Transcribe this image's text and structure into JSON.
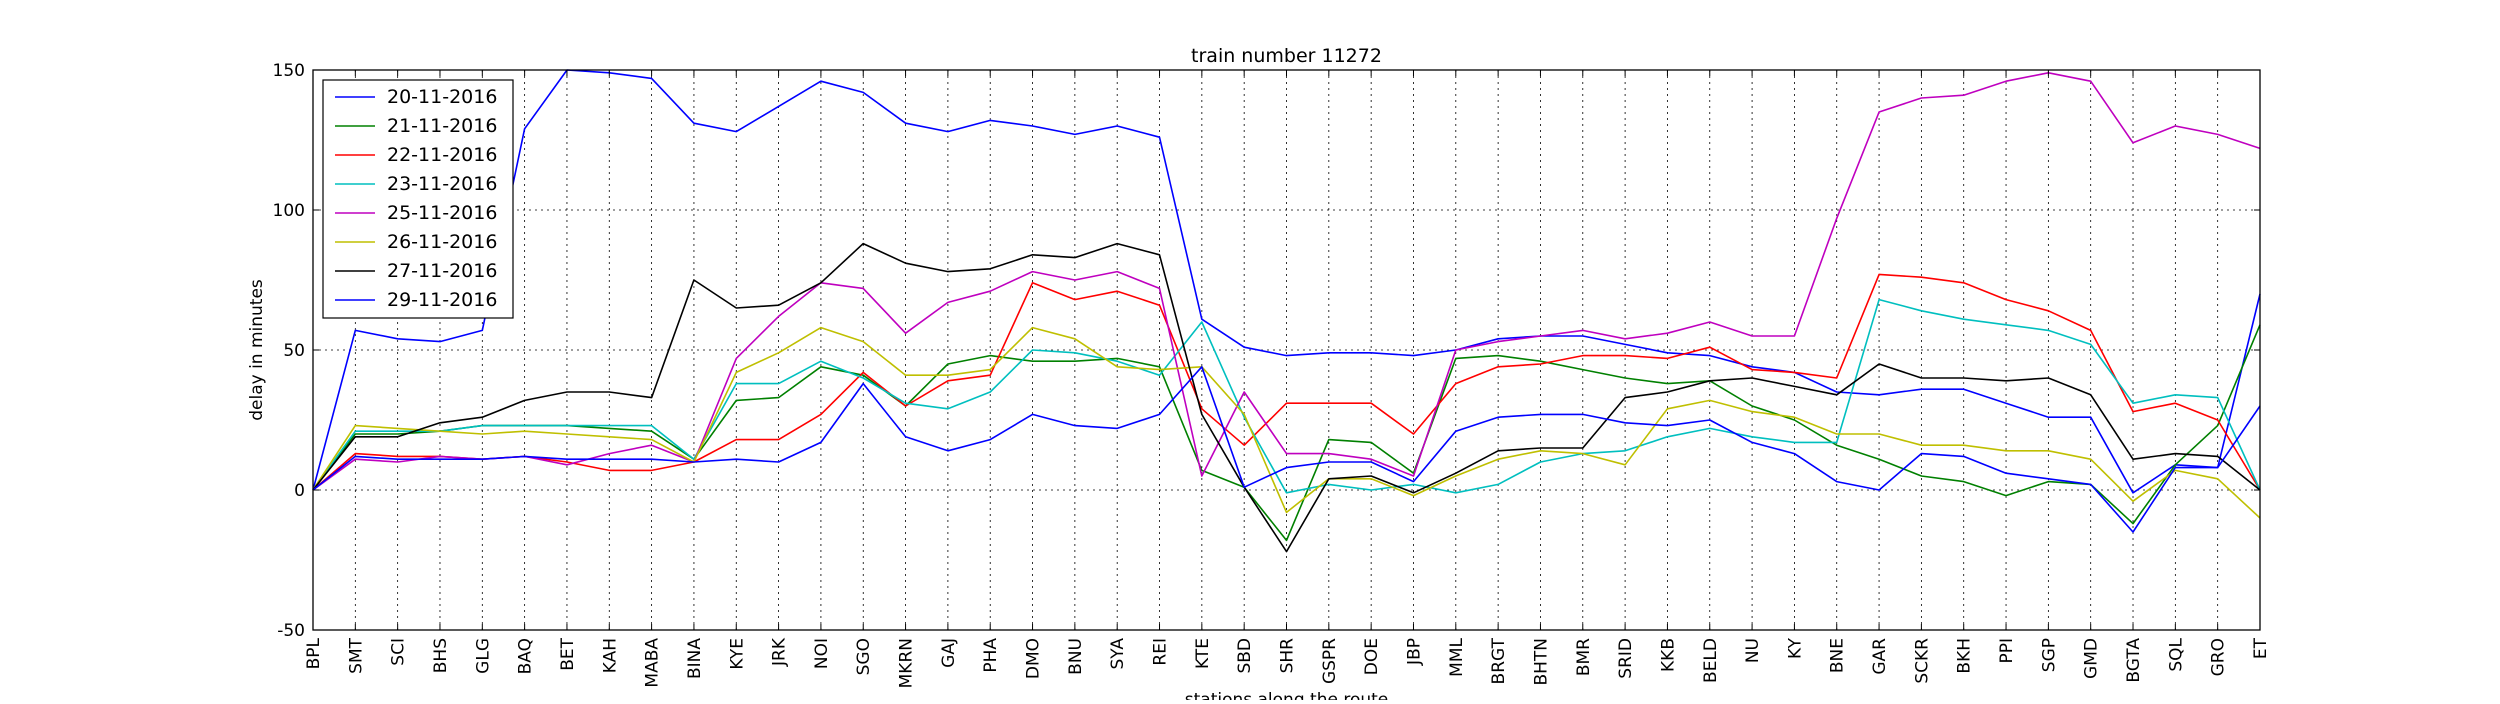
{
  "chart_data": {
    "type": "line",
    "title": "train number 11272",
    "xlabel": "stations along the route",
    "ylabel": "delay in minutes",
    "ylim": [
      -50,
      150
    ],
    "yticks": [
      -50,
      0,
      50,
      100,
      150
    ],
    "grid": true,
    "legend_position": "top-left",
    "categories": [
      "BPL",
      "SMT",
      "SCI",
      "BHS",
      "GLG",
      "BAQ",
      "BET",
      "KAH",
      "MABA",
      "BINA",
      "KYE",
      "JRK",
      "NOI",
      "SGO",
      "MKRN",
      "GAJ",
      "PHA",
      "DMO",
      "BNU",
      "SYA",
      "REI",
      "KTE",
      "SBD",
      "SHR",
      "GSPR",
      "DOE",
      "JBP",
      "MML",
      "BRGT",
      "BHTN",
      "BMR",
      "SRID",
      "KKB",
      "BELD",
      "NU",
      "KY",
      "BNE",
      "GAR",
      "SCKR",
      "BKH",
      "PPI",
      "SGP",
      "GMD",
      "BGTA",
      "SQL",
      "GRO",
      "ET"
    ],
    "series": [
      {
        "name": "20-11-2016",
        "color": "#0000ff",
        "values": [
          0,
          57,
          54,
          53,
          57,
          129,
          150,
          149,
          147,
          131,
          128,
          137,
          146,
          142,
          131,
          128,
          132,
          130,
          127,
          130,
          126,
          61,
          51,
          48,
          49,
          49,
          48,
          50,
          54,
          55,
          55,
          52,
          49,
          48,
          44,
          42,
          35,
          34,
          36,
          36,
          31,
          26,
          26,
          -1,
          9,
          8,
          70
        ]
      },
      {
        "name": "21-11-2016",
        "color": "#008000",
        "values": [
          0,
          20,
          20,
          21,
          23,
          23,
          23,
          22,
          21,
          11,
          32,
          33,
          44,
          41,
          30,
          45,
          48,
          46,
          46,
          47,
          44,
          7,
          1,
          -18,
          18,
          17,
          6,
          47,
          48,
          46,
          43,
          40,
          38,
          39,
          30,
          25,
          16,
          11,
          5,
          3,
          -2,
          3,
          2,
          -12,
          9,
          23,
          59
        ]
      },
      {
        "name": "22-11-2016",
        "color": "#ff0000",
        "values": [
          0,
          13,
          12,
          12,
          11,
          12,
          10,
          7,
          7,
          10,
          18,
          18,
          27,
          42,
          30,
          39,
          41,
          74,
          68,
          71,
          66,
          29,
          16,
          31,
          31,
          31,
          20,
          38,
          44,
          45,
          48,
          48,
          47,
          51,
          43,
          42,
          40,
          77,
          76,
          74,
          68,
          64,
          57,
          28,
          31,
          25,
          0
        ]
      },
      {
        "name": "23-11-2016",
        "color": "#00bfbf",
        "values": [
          0,
          21,
          21,
          21,
          23,
          23,
          23,
          23,
          23,
          11,
          38,
          38,
          46,
          40,
          31,
          29,
          35,
          50,
          49,
          46,
          41,
          60,
          26,
          -1,
          2,
          0,
          2,
          -1,
          2,
          10,
          13,
          14,
          19,
          22,
          19,
          17,
          17,
          68,
          64,
          61,
          59,
          57,
          52,
          31,
          34,
          33,
          0
        ]
      },
      {
        "name": "25-11-2016",
        "color": "#bf00bf",
        "values": [
          0,
          11,
          10,
          12,
          11,
          12,
          9,
          13,
          16,
          10,
          47,
          62,
          74,
          72,
          56,
          67,
          71,
          78,
          75,
          78,
          72,
          5,
          35,
          13,
          13,
          11,
          5,
          50,
          53,
          55,
          57,
          54,
          56,
          60,
          55,
          55,
          97,
          135,
          140,
          141,
          146,
          149,
          146,
          124,
          130,
          127,
          122
        ]
      },
      {
        "name": "26-11-2016",
        "color": "#bfbf00",
        "values": [
          0,
          23,
          22,
          21,
          20,
          21,
          20,
          19,
          18,
          10,
          42,
          49,
          58,
          53,
          41,
          41,
          43,
          58,
          54,
          44,
          43,
          44,
          27,
          -8,
          4,
          4,
          -2,
          5,
          11,
          14,
          13,
          9,
          29,
          32,
          28,
          26,
          20,
          20,
          16,
          16,
          14,
          14,
          11,
          -4,
          7,
          4,
          -10
        ]
      },
      {
        "name": "27-11-2016",
        "color": "#000000",
        "values": [
          0,
          19,
          19,
          24,
          26,
          32,
          35,
          35,
          33,
          75,
          65,
          66,
          74,
          88,
          81,
          78,
          79,
          84,
          83,
          88,
          84,
          27,
          1,
          -22,
          4,
          5,
          -1,
          6,
          14,
          15,
          15,
          33,
          35,
          39,
          40,
          37,
          34,
          45,
          40,
          40,
          39,
          40,
          34,
          11,
          13,
          12,
          0
        ]
      },
      {
        "name": "29-11-2016",
        "color": "#0000ff",
        "values": [
          0,
          12,
          11,
          11,
          11,
          12,
          11,
          11,
          11,
          10,
          11,
          10,
          17,
          38,
          19,
          14,
          18,
          27,
          23,
          22,
          27,
          44,
          1,
          8,
          10,
          10,
          3,
          21,
          26,
          27,
          27,
          24,
          23,
          25,
          17,
          13,
          3,
          0,
          13,
          12,
          6,
          4,
          2,
          -15,
          8,
          8,
          30
        ]
      }
    ]
  }
}
